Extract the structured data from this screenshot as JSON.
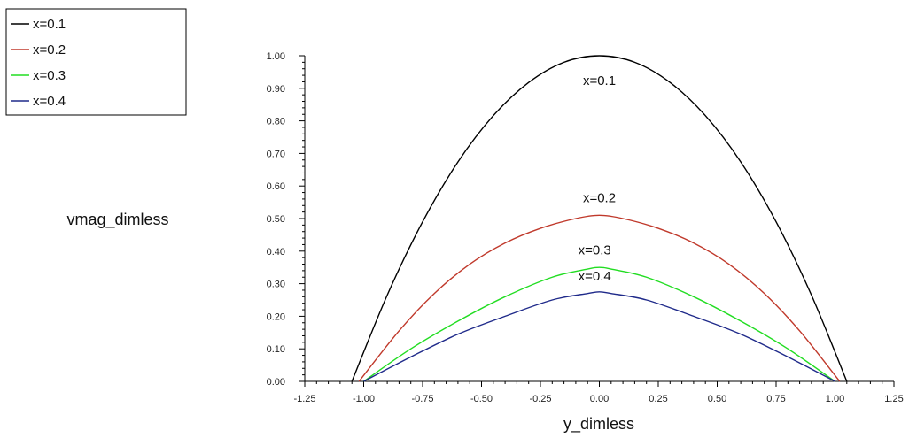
{
  "chart_data": {
    "type": "line",
    "xlabel": "y_dimless",
    "ylabel": "vmag_dimless",
    "xlim": [
      -1.25,
      1.25
    ],
    "ylim": [
      0,
      1.0
    ],
    "x_ticks": [
      "-1.25",
      "-1.00",
      "-0.75",
      "-0.50",
      "-0.25",
      "0.00",
      "0.25",
      "0.50",
      "0.75",
      "1.00",
      "1.25"
    ],
    "y_ticks": [
      "0.00",
      "0.10",
      "0.20",
      "0.30",
      "0.40",
      "0.50",
      "0.60",
      "0.70",
      "0.80",
      "0.90",
      "1.00"
    ],
    "grid": false,
    "legend_position": "top-left",
    "series": [
      {
        "name": "x=0.1",
        "color": "#000000",
        "x": [
          -1.05,
          -0.9,
          -0.75,
          -0.6,
          -0.45,
          -0.3,
          -0.15,
          0.0,
          0.15,
          0.3,
          0.45,
          0.6,
          0.75,
          0.9,
          1.05
        ],
        "y": [
          0.0,
          0.265,
          0.49,
          0.674,
          0.816,
          0.918,
          0.98,
          1.0,
          0.98,
          0.918,
          0.816,
          0.674,
          0.49,
          0.265,
          0.0
        ]
      },
      {
        "name": "x=0.2",
        "color": "#c0392b",
        "x": [
          -1.02,
          -0.85,
          -0.7,
          -0.55,
          -0.4,
          -0.25,
          -0.1,
          0.0,
          0.1,
          0.25,
          0.4,
          0.55,
          0.7,
          0.85,
          1.02
        ],
        "y": [
          0.0,
          0.155,
          0.27,
          0.36,
          0.425,
          0.47,
          0.5,
          0.51,
          0.5,
          0.47,
          0.425,
          0.36,
          0.27,
          0.155,
          0.0
        ]
      },
      {
        "name": "x=0.3",
        "color": "#22dd22",
        "x": [
          -1.0,
          -0.8,
          -0.6,
          -0.4,
          -0.2,
          -0.05,
          0.0,
          0.05,
          0.2,
          0.4,
          0.6,
          0.8,
          1.0
        ],
        "y": [
          0.0,
          0.1,
          0.185,
          0.26,
          0.32,
          0.345,
          0.35,
          0.345,
          0.32,
          0.26,
          0.185,
          0.1,
          0.0
        ]
      },
      {
        "name": "x=0.4",
        "color": "#1f2a8a",
        "x": [
          -1.0,
          -0.8,
          -0.6,
          -0.4,
          -0.2,
          -0.05,
          0.0,
          0.05,
          0.2,
          0.4,
          0.6,
          0.8,
          1.0
        ],
        "y": [
          0.0,
          0.075,
          0.145,
          0.2,
          0.25,
          0.27,
          0.275,
          0.27,
          0.25,
          0.2,
          0.145,
          0.075,
          0.0
        ]
      }
    ],
    "annotations": [
      {
        "text": "x=0.1",
        "x": 0.0,
        "y": 0.91
      },
      {
        "text": "x=0.2",
        "x": 0.0,
        "y": 0.55
      },
      {
        "text": "x=0.3",
        "x": -0.02,
        "y": 0.39
      },
      {
        "text": "x=0.4",
        "x": -0.02,
        "y": 0.31
      }
    ]
  }
}
